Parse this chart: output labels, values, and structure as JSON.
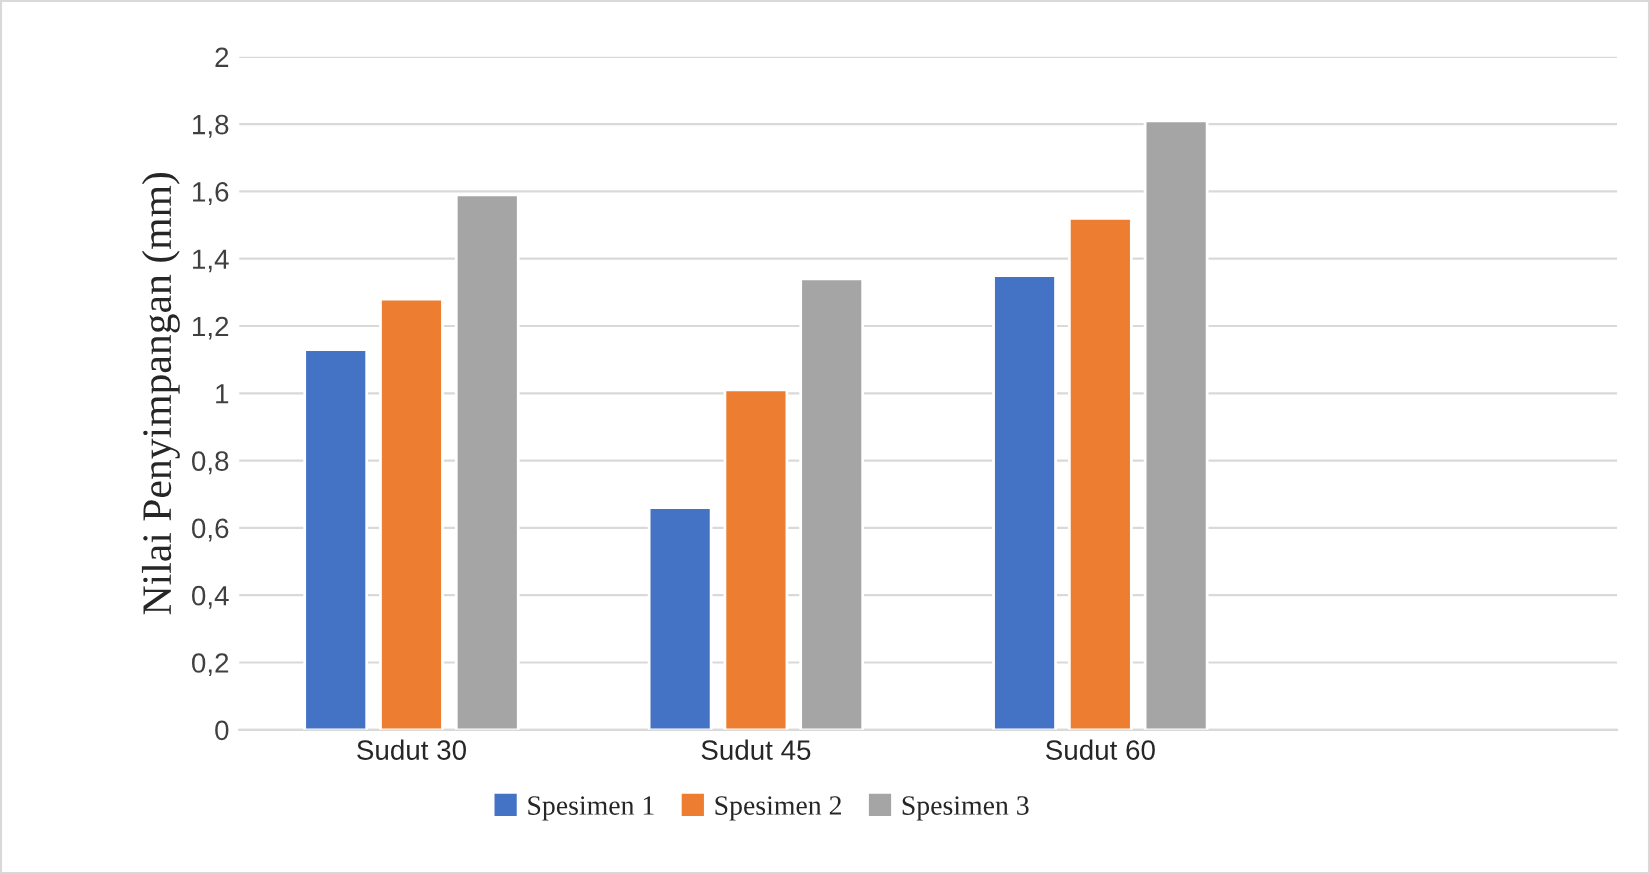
{
  "chart_data": {
    "type": "bar",
    "ylabel": "Nilai Penyimpangan (mm)",
    "categories": [
      "Sudut 30",
      "Sudut 45",
      "Sudut 60",
      null
    ],
    "series": [
      {
        "name": "Spesimen 1",
        "color": "#4472c4",
        "values": [
          1.13,
          0.66,
          1.35,
          null
        ]
      },
      {
        "name": "Spesimen 2",
        "color": "#ed7d31",
        "values": [
          1.28,
          1.01,
          1.52,
          null
        ]
      },
      {
        "name": "Spesimen 3",
        "color": "#a5a5a5",
        "values": [
          1.59,
          1.34,
          1.81,
          null
        ]
      }
    ],
    "ylim": [
      0,
      2
    ],
    "yticks": [
      0,
      {
        "value": 0.2,
        "label": "0,2"
      },
      {
        "value": 0.4,
        "label": "0,4"
      },
      {
        "value": 0.6,
        "label": "0,6"
      },
      {
        "value": 0.8,
        "label": "0,8"
      },
      1,
      {
        "value": 1.2,
        "label": "1,2"
      },
      {
        "value": 1.4,
        "label": "1,4"
      },
      {
        "value": 1.6,
        "label": "1,6"
      },
      {
        "value": 1.8,
        "label": "1,8"
      },
      2
    ],
    "grid": "y",
    "legend": "bottom"
  }
}
